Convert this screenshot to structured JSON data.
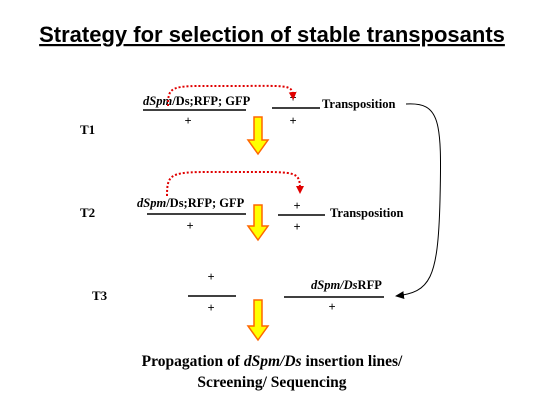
{
  "title": "Strategy for selection of stable transposants",
  "generations": [
    {
      "label": "T1",
      "left_genotype": [
        "dSpm",
        "/Ds;RFP; GFP"
      ],
      "left_lower": "+",
      "right_upper": "+",
      "right_lower": "+",
      "event": "Transposition"
    },
    {
      "label": "T2",
      "left_genotype": [
        "dSpm",
        "/Ds;RFP; GFP"
      ],
      "left_lower": "+",
      "right_upper": "+",
      "right_lower": "+",
      "event": "Transposition"
    },
    {
      "label": "T3",
      "left_upper": "+",
      "left_lower": "+",
      "right_genotype": [
        "dSpm/Ds",
        "RFP"
      ],
      "right_lower": "+"
    }
  ],
  "footer": {
    "line1": [
      "Propagation of ",
      "dSpm/Ds",
      " insertion lines/"
    ],
    "line2": "Screening/ Sequencing"
  }
}
